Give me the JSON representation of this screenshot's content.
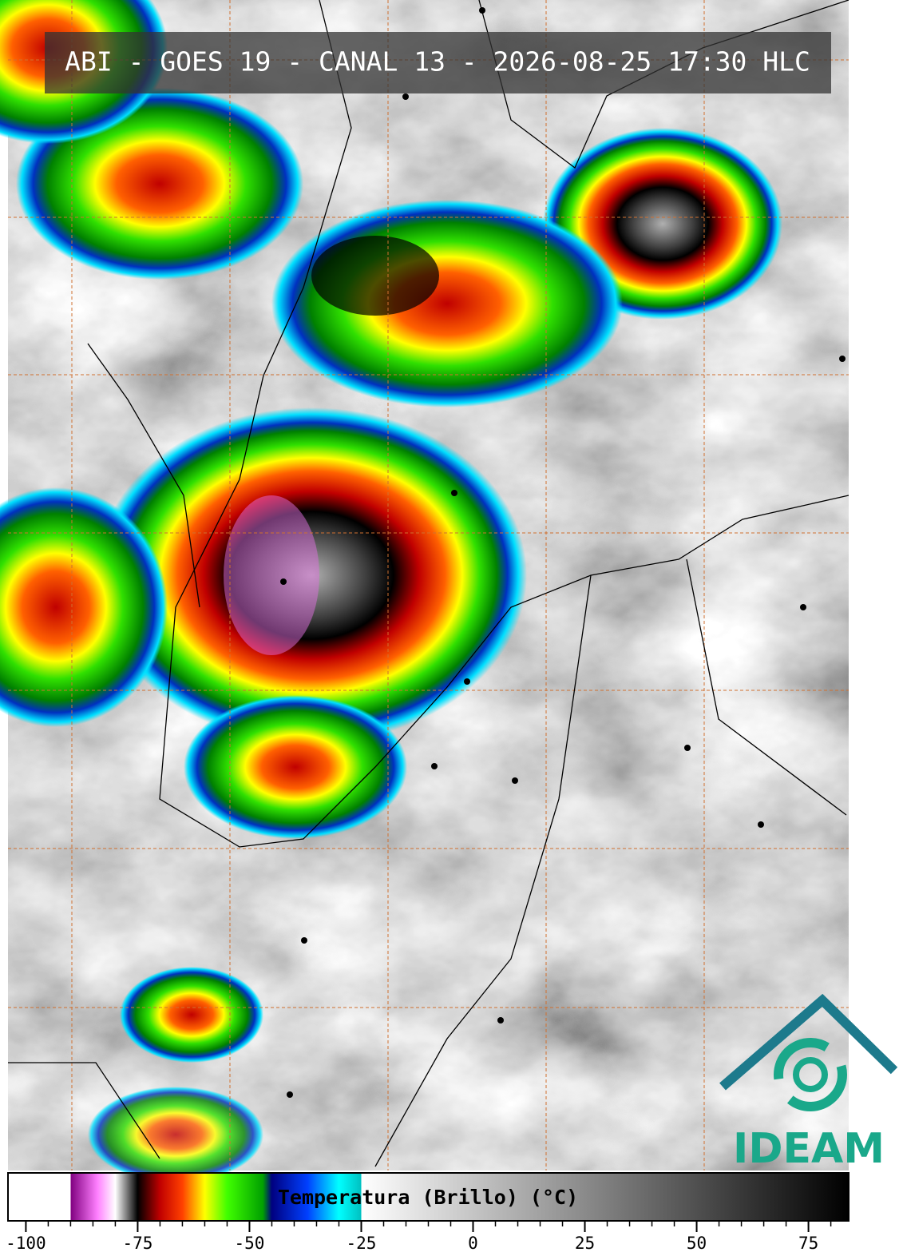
{
  "header": {
    "title": "ABI - GOES 19 - CANAL 13 - 2026-08-25 17:30 HLC"
  },
  "logo": {
    "text": "IDEAM"
  },
  "colorbar": {
    "label": "Temperatura (Brillo) (°C)",
    "lim": [
      -104,
      84
    ],
    "ticks": [
      -100,
      -75,
      -50,
      -25,
      0,
      25,
      50,
      75
    ],
    "minor_ticks": [
      -100,
      -95,
      -90,
      -85,
      -80,
      -75,
      -70,
      -65,
      -60,
      -55,
      -50,
      -45,
      -40,
      -35,
      -30,
      -25,
      -20,
      -15,
      -10,
      -5,
      0,
      5,
      10,
      15,
      20,
      25,
      30,
      35,
      40,
      45,
      50,
      55,
      60,
      65,
      70,
      75,
      80
    ],
    "stops": [
      {
        "value": -104,
        "color": "#ffffff"
      },
      {
        "value": -90,
        "color": "#ffffff"
      },
      {
        "value": -90,
        "color": "#800080"
      },
      {
        "value": -84,
        "color": "#ff80ff"
      },
      {
        "value": -80,
        "color": "#ffffff"
      },
      {
        "value": -75,
        "color": "#000000"
      },
      {
        "value": -70,
        "color": "#c00000"
      },
      {
        "value": -65,
        "color": "#ff4000"
      },
      {
        "value": -60,
        "color": "#ffff00"
      },
      {
        "value": -55,
        "color": "#40ff00"
      },
      {
        "value": -47,
        "color": "#00a000"
      },
      {
        "value": -45,
        "color": "#000080"
      },
      {
        "value": -37,
        "color": "#0040ff"
      },
      {
        "value": -30,
        "color": "#00ffff"
      },
      {
        "value": -25,
        "color": "#00c0c0"
      },
      {
        "value": -25,
        "color": "#ffffff"
      },
      {
        "value": 84,
        "color": "#000000"
      }
    ]
  }
}
